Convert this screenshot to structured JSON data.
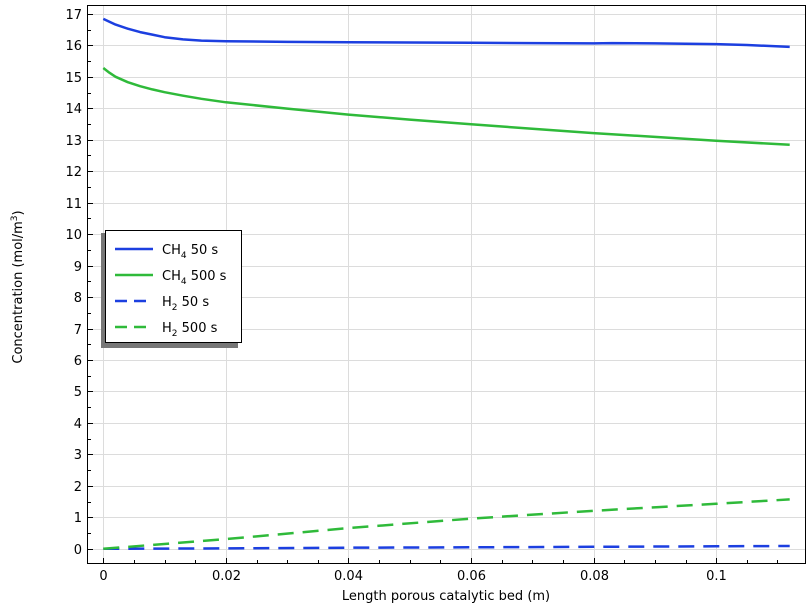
{
  "chart_data": {
    "type": "line",
    "title": "",
    "xlabel": "Length porous catalytic bed (m)",
    "ylabel": {
      "text": "Concentration (mol/m",
      "sup": "3",
      "suffix": ")"
    },
    "xlim": [
      -0.0025,
      0.1145
    ],
    "ylim": [
      -0.45,
      17.25
    ],
    "xticks": [
      0,
      0.02,
      0.04,
      0.06,
      0.08,
      0.1
    ],
    "xtick_labels": [
      "0",
      "0.02",
      "0.04",
      "0.06",
      "0.08",
      "0.1"
    ],
    "yticks": [
      0,
      1,
      2,
      3,
      4,
      5,
      6,
      7,
      8,
      9,
      10,
      11,
      12,
      13,
      14,
      15,
      16,
      17
    ],
    "ytick_labels": [
      "0",
      "1",
      "2",
      "3",
      "4",
      "5",
      "6",
      "7",
      "8",
      "9",
      "10",
      "11",
      "12",
      "13",
      "14",
      "15",
      "16",
      "17"
    ],
    "grid": true,
    "legend_position": "left",
    "series": [
      {
        "name": "CH4 50 s",
        "legend": {
          "base": "CH",
          "sub": "4",
          "rest": " 50 s"
        },
        "color": "#1c3fe0",
        "dash": false,
        "x": [
          0,
          0.001,
          0.002,
          0.004,
          0.006,
          0.008,
          0.01,
          0.013,
          0.016,
          0.02,
          0.03,
          0.04,
          0.05,
          0.06,
          0.07,
          0.08,
          0.083,
          0.09,
          0.1,
          0.105,
          0.112
        ],
        "y": [
          16.84,
          16.75,
          16.66,
          16.53,
          16.42,
          16.34,
          16.26,
          16.19,
          16.15,
          16.13,
          16.11,
          16.1,
          16.09,
          16.08,
          16.07,
          16.06,
          16.07,
          16.06,
          16.04,
          16.01,
          15.95
        ]
      },
      {
        "name": "CH4 500 s",
        "legend": {
          "base": "CH",
          "sub": "4",
          "rest": " 500 s"
        },
        "color": "#2fba3a",
        "dash": false,
        "x": [
          0,
          0.001,
          0.002,
          0.004,
          0.006,
          0.008,
          0.01,
          0.013,
          0.016,
          0.02,
          0.03,
          0.04,
          0.05,
          0.06,
          0.07,
          0.08,
          0.09,
          0.1,
          0.112
        ],
        "y": [
          15.28,
          15.13,
          15.0,
          14.83,
          14.7,
          14.6,
          14.51,
          14.4,
          14.3,
          14.19,
          13.99,
          13.8,
          13.64,
          13.49,
          13.35,
          13.21,
          13.09,
          12.97,
          12.84
        ]
      },
      {
        "name": "H2 50 s",
        "legend": {
          "base": "H",
          "sub": "2",
          "rest": " 50 s"
        },
        "color": "#1c3fe0",
        "dash": true,
        "x": [
          0,
          0.02,
          0.04,
          0.06,
          0.08,
          0.1,
          0.112
        ],
        "y": [
          0,
          0.015,
          0.035,
          0.05,
          0.065,
          0.08,
          0.09
        ]
      },
      {
        "name": "H2 500 s",
        "legend": {
          "base": "H",
          "sub": "2",
          "rest": " 500 s"
        },
        "color": "#2fba3a",
        "dash": true,
        "x": [
          0,
          0.02,
          0.04,
          0.06,
          0.08,
          0.1,
          0.112
        ],
        "y": [
          0,
          0.31,
          0.66,
          0.96,
          1.21,
          1.43,
          1.57
        ]
      }
    ]
  }
}
